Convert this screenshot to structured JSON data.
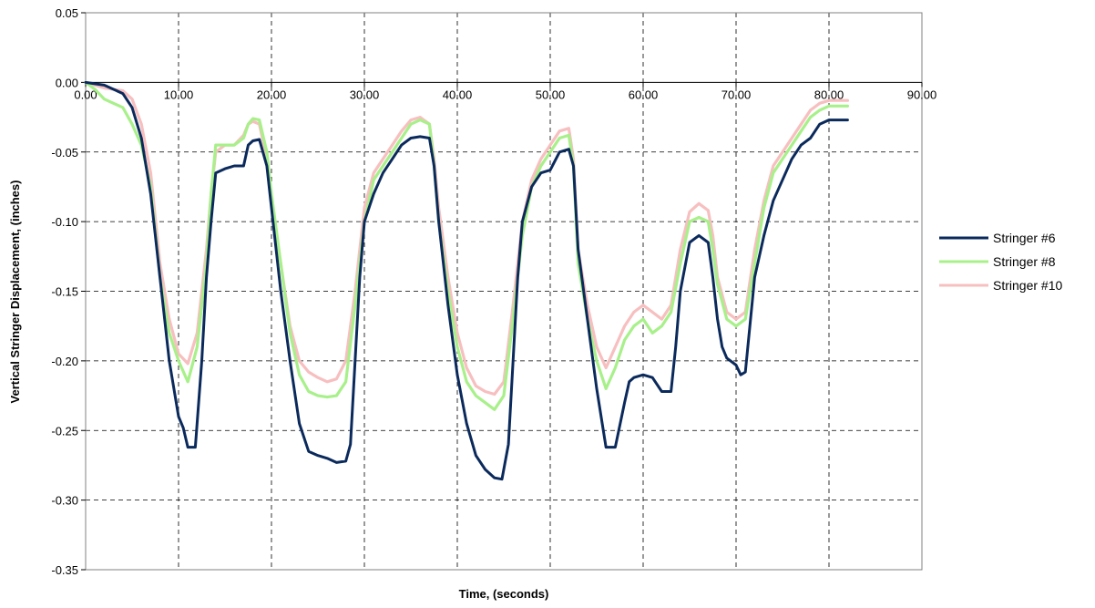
{
  "chart_data": {
    "type": "line",
    "xlabel": "Time, (seconds)",
    "ylabel": "Vertical Stringer Displacement, (inches)",
    "xlim": [
      0,
      90
    ],
    "ylim": [
      -0.35,
      0.05
    ],
    "x_ticks": [
      "0.00",
      "10.00",
      "20.00",
      "30.00",
      "40.00",
      "50.00",
      "60.00",
      "70.00",
      "80.00",
      "90.00"
    ],
    "y_ticks": [
      "0.05",
      "0.00",
      "-0.05",
      "-0.10",
      "-0.15",
      "-0.20",
      "-0.25",
      "-0.30",
      "-0.35"
    ],
    "grid": true,
    "legend_position": "right",
    "series": [
      {
        "name": "Stringer #6",
        "color": "#0b2a5c",
        "points": [
          [
            0,
            0.0
          ],
          [
            2,
            -0.002
          ],
          [
            4,
            -0.008
          ],
          [
            5,
            -0.018
          ],
          [
            6,
            -0.04
          ],
          [
            7,
            -0.08
          ],
          [
            8,
            -0.14
          ],
          [
            9,
            -0.2
          ],
          [
            10,
            -0.24
          ],
          [
            10.5,
            -0.248
          ],
          [
            11,
            -0.262
          ],
          [
            11.8,
            -0.262
          ],
          [
            12.5,
            -0.2
          ],
          [
            13,
            -0.14
          ],
          [
            13.5,
            -0.1
          ],
          [
            14,
            -0.065
          ],
          [
            15,
            -0.062
          ],
          [
            16,
            -0.06
          ],
          [
            17,
            -0.06
          ],
          [
            17.5,
            -0.045
          ],
          [
            18,
            -0.042
          ],
          [
            18.7,
            -0.041
          ],
          [
            19.5,
            -0.06
          ],
          [
            20,
            -0.09
          ],
          [
            21,
            -0.15
          ],
          [
            22,
            -0.2
          ],
          [
            23,
            -0.245
          ],
          [
            24,
            -0.265
          ],
          [
            25,
            -0.268
          ],
          [
            26,
            -0.27
          ],
          [
            27,
            -0.273
          ],
          [
            28,
            -0.272
          ],
          [
            28.5,
            -0.26
          ],
          [
            29,
            -0.2
          ],
          [
            29.5,
            -0.14
          ],
          [
            30,
            -0.1
          ],
          [
            31,
            -0.08
          ],
          [
            32,
            -0.065
          ],
          [
            33,
            -0.055
          ],
          [
            34,
            -0.045
          ],
          [
            35,
            -0.04
          ],
          [
            36,
            -0.039
          ],
          [
            37,
            -0.04
          ],
          [
            37.5,
            -0.06
          ],
          [
            38,
            -0.1
          ],
          [
            39,
            -0.16
          ],
          [
            40,
            -0.21
          ],
          [
            41,
            -0.245
          ],
          [
            42,
            -0.268
          ],
          [
            43,
            -0.278
          ],
          [
            44,
            -0.284
          ],
          [
            44.8,
            -0.285
          ],
          [
            45.5,
            -0.26
          ],
          [
            46,
            -0.2
          ],
          [
            46.5,
            -0.14
          ],
          [
            47,
            -0.1
          ],
          [
            48,
            -0.075
          ],
          [
            49,
            -0.065
          ],
          [
            50,
            -0.063
          ],
          [
            51,
            -0.05
          ],
          [
            52,
            -0.048
          ],
          [
            52.5,
            -0.06
          ],
          [
            53,
            -0.12
          ],
          [
            54,
            -0.17
          ],
          [
            55,
            -0.22
          ],
          [
            56,
            -0.262
          ],
          [
            57,
            -0.262
          ],
          [
            58,
            -0.23
          ],
          [
            58.5,
            -0.215
          ],
          [
            59,
            -0.212
          ],
          [
            60,
            -0.21
          ],
          [
            61,
            -0.212
          ],
          [
            62,
            -0.222
          ],
          [
            63,
            -0.222
          ],
          [
            63.5,
            -0.19
          ],
          [
            64,
            -0.15
          ],
          [
            65,
            -0.115
          ],
          [
            66,
            -0.11
          ],
          [
            67,
            -0.115
          ],
          [
            67.5,
            -0.14
          ],
          [
            68,
            -0.17
          ],
          [
            68.5,
            -0.19
          ],
          [
            69,
            -0.198
          ],
          [
            70,
            -0.203
          ],
          [
            70.5,
            -0.21
          ],
          [
            71,
            -0.208
          ],
          [
            72,
            -0.14
          ],
          [
            73,
            -0.11
          ],
          [
            74,
            -0.085
          ],
          [
            75,
            -0.07
          ],
          [
            76,
            -0.055
          ],
          [
            77,
            -0.045
          ],
          [
            78,
            -0.04
          ],
          [
            79,
            -0.03
          ],
          [
            80,
            -0.027
          ],
          [
            82,
            -0.027
          ]
        ]
      },
      {
        "name": "Stringer #8",
        "color": "#a8f08a",
        "points": [
          [
            0,
            0.0
          ],
          [
            1,
            -0.005
          ],
          [
            2,
            -0.012
          ],
          [
            4,
            -0.018
          ],
          [
            5,
            -0.03
          ],
          [
            6,
            -0.045
          ],
          [
            7,
            -0.075
          ],
          [
            8,
            -0.14
          ],
          [
            9,
            -0.18
          ],
          [
            10,
            -0.2
          ],
          [
            11,
            -0.215
          ],
          [
            12,
            -0.19
          ],
          [
            13,
            -0.13
          ],
          [
            13.5,
            -0.08
          ],
          [
            14,
            -0.045
          ],
          [
            15,
            -0.045
          ],
          [
            16,
            -0.045
          ],
          [
            17,
            -0.04
          ],
          [
            17.5,
            -0.03
          ],
          [
            18,
            -0.026
          ],
          [
            18.7,
            -0.027
          ],
          [
            19.5,
            -0.05
          ],
          [
            20,
            -0.08
          ],
          [
            21,
            -0.13
          ],
          [
            22,
            -0.18
          ],
          [
            23,
            -0.21
          ],
          [
            24,
            -0.222
          ],
          [
            25,
            -0.225
          ],
          [
            26,
            -0.226
          ],
          [
            27,
            -0.225
          ],
          [
            28,
            -0.215
          ],
          [
            29,
            -0.16
          ],
          [
            30,
            -0.1
          ],
          [
            31,
            -0.07
          ],
          [
            32,
            -0.06
          ],
          [
            33,
            -0.05
          ],
          [
            34,
            -0.04
          ],
          [
            35,
            -0.03
          ],
          [
            36,
            -0.027
          ],
          [
            37,
            -0.03
          ],
          [
            37.5,
            -0.06
          ],
          [
            38,
            -0.1
          ],
          [
            39,
            -0.15
          ],
          [
            40,
            -0.19
          ],
          [
            41,
            -0.215
          ],
          [
            42,
            -0.225
          ],
          [
            43,
            -0.23
          ],
          [
            44,
            -0.235
          ],
          [
            45,
            -0.225
          ],
          [
            46,
            -0.17
          ],
          [
            47,
            -0.11
          ],
          [
            48,
            -0.075
          ],
          [
            49,
            -0.06
          ],
          [
            50,
            -0.05
          ],
          [
            51,
            -0.04
          ],
          [
            52,
            -0.038
          ],
          [
            52.5,
            -0.06
          ],
          [
            53,
            -0.13
          ],
          [
            54,
            -0.17
          ],
          [
            55,
            -0.2
          ],
          [
            56,
            -0.22
          ],
          [
            57,
            -0.205
          ],
          [
            58,
            -0.185
          ],
          [
            59,
            -0.175
          ],
          [
            60,
            -0.17
          ],
          [
            61,
            -0.18
          ],
          [
            62,
            -0.175
          ],
          [
            63,
            -0.165
          ],
          [
            64,
            -0.13
          ],
          [
            65,
            -0.1
          ],
          [
            66,
            -0.097
          ],
          [
            67,
            -0.1
          ],
          [
            67.5,
            -0.12
          ],
          [
            68,
            -0.145
          ],
          [
            69,
            -0.17
          ],
          [
            70,
            -0.175
          ],
          [
            71,
            -0.17
          ],
          [
            72,
            -0.13
          ],
          [
            73,
            -0.09
          ],
          [
            74,
            -0.065
          ],
          [
            75,
            -0.055
          ],
          [
            76,
            -0.045
          ],
          [
            77,
            -0.035
          ],
          [
            78,
            -0.025
          ],
          [
            79,
            -0.02
          ],
          [
            80,
            -0.017
          ],
          [
            82,
            -0.017
          ]
        ]
      },
      {
        "name": "Stringer #10",
        "color": "#f7bfbf",
        "points": [
          [
            0,
            0.0
          ],
          [
            1,
            -0.002
          ],
          [
            2,
            -0.004
          ],
          [
            4,
            -0.006
          ],
          [
            5,
            -0.012
          ],
          [
            6,
            -0.03
          ],
          [
            7,
            -0.065
          ],
          [
            8,
            -0.13
          ],
          [
            9,
            -0.17
          ],
          [
            10,
            -0.195
          ],
          [
            11,
            -0.202
          ],
          [
            12,
            -0.18
          ],
          [
            13,
            -0.12
          ],
          [
            13.5,
            -0.08
          ],
          [
            14,
            -0.05
          ],
          [
            15,
            -0.045
          ],
          [
            16,
            -0.045
          ],
          [
            17,
            -0.038
          ],
          [
            17.5,
            -0.03
          ],
          [
            18,
            -0.028
          ],
          [
            18.7,
            -0.03
          ],
          [
            19.5,
            -0.055
          ],
          [
            20,
            -0.085
          ],
          [
            21,
            -0.13
          ],
          [
            22,
            -0.175
          ],
          [
            23,
            -0.2
          ],
          [
            24,
            -0.208
          ],
          [
            25,
            -0.212
          ],
          [
            26,
            -0.215
          ],
          [
            27,
            -0.213
          ],
          [
            28,
            -0.2
          ],
          [
            29,
            -0.15
          ],
          [
            30,
            -0.09
          ],
          [
            31,
            -0.065
          ],
          [
            32,
            -0.055
          ],
          [
            33,
            -0.045
          ],
          [
            34,
            -0.035
          ],
          [
            35,
            -0.027
          ],
          [
            36,
            -0.025
          ],
          [
            37,
            -0.03
          ],
          [
            37.5,
            -0.055
          ],
          [
            38,
            -0.09
          ],
          [
            39,
            -0.14
          ],
          [
            40,
            -0.18
          ],
          [
            41,
            -0.205
          ],
          [
            42,
            -0.218
          ],
          [
            43,
            -0.222
          ],
          [
            44,
            -0.224
          ],
          [
            45,
            -0.215
          ],
          [
            46,
            -0.16
          ],
          [
            47,
            -0.1
          ],
          [
            48,
            -0.07
          ],
          [
            49,
            -0.055
          ],
          [
            50,
            -0.045
          ],
          [
            51,
            -0.035
          ],
          [
            52,
            -0.033
          ],
          [
            52.5,
            -0.055
          ],
          [
            53,
            -0.12
          ],
          [
            54,
            -0.16
          ],
          [
            55,
            -0.19
          ],
          [
            56,
            -0.205
          ],
          [
            57,
            -0.19
          ],
          [
            58,
            -0.175
          ],
          [
            59,
            -0.165
          ],
          [
            60,
            -0.16
          ],
          [
            61,
            -0.165
          ],
          [
            62,
            -0.17
          ],
          [
            63,
            -0.16
          ],
          [
            64,
            -0.12
          ],
          [
            65,
            -0.093
          ],
          [
            66,
            -0.087
          ],
          [
            67,
            -0.092
          ],
          [
            67.5,
            -0.11
          ],
          [
            68,
            -0.14
          ],
          [
            69,
            -0.165
          ],
          [
            70,
            -0.17
          ],
          [
            71,
            -0.165
          ],
          [
            72,
            -0.12
          ],
          [
            73,
            -0.085
          ],
          [
            74,
            -0.06
          ],
          [
            75,
            -0.05
          ],
          [
            76,
            -0.04
          ],
          [
            77,
            -0.03
          ],
          [
            78,
            -0.02
          ],
          [
            79,
            -0.015
          ],
          [
            80,
            -0.013
          ],
          [
            82,
            -0.013
          ]
        ]
      }
    ]
  }
}
